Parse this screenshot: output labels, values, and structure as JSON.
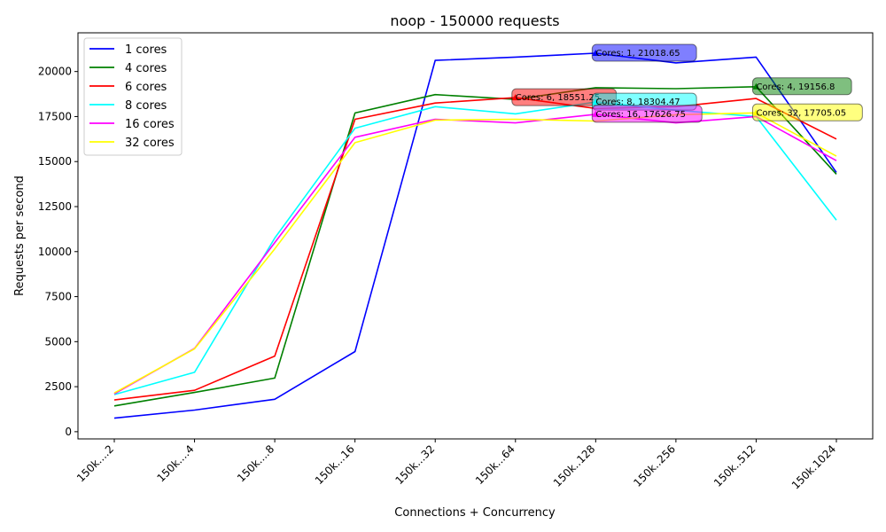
{
  "chart_data": {
    "type": "line",
    "title": "noop - 150000 requests",
    "xlabel": "Connections + Concurrency",
    "ylabel": "Requests per second",
    "categories": [
      "150k....2",
      "150k....4",
      "150k....8",
      "150k...16",
      "150k...32",
      "150k...64",
      "150k..128",
      "150k..256",
      "150k..512",
      "150k.1024"
    ],
    "y_ticks": [
      0,
      2500,
      5000,
      7500,
      10000,
      12500,
      15000,
      17500,
      20000
    ],
    "ylim": [
      -400,
      22150
    ],
    "grid": false,
    "legend_position": "upper-left",
    "series": [
      {
        "name": "1 cores",
        "color": "#0000ff",
        "values": [
          750,
          1200,
          1800,
          4450,
          20620,
          20800,
          21018.65,
          20480,
          20800,
          14400
        ]
      },
      {
        "name": "4 cores",
        "color": "#008000",
        "values": [
          1430,
          2180,
          2980,
          17700,
          18720,
          18450,
          19100,
          19050,
          19156.8,
          14300
        ]
      },
      {
        "name": "6 cores",
        "color": "#ff0000",
        "values": [
          1760,
          2300,
          4200,
          17350,
          18250,
          18551.25,
          17950,
          18050,
          18500,
          16250
        ]
      },
      {
        "name": "8 cores",
        "color": "#00ffff",
        "values": [
          2060,
          3300,
          10750,
          16850,
          18050,
          17650,
          18304.47,
          17850,
          17500,
          11750
        ]
      },
      {
        "name": "16 cores",
        "color": "#ff00ff",
        "values": [
          2100,
          4620,
          10500,
          16350,
          17350,
          17150,
          17626.75,
          17150,
          17500,
          15050
        ]
      },
      {
        "name": "32 cores",
        "color": "#ffff00",
        "values": [
          2150,
          4600,
          10150,
          16050,
          17300,
          17350,
          17250,
          17600,
          17705.05,
          15300
        ]
      }
    ],
    "annotations": [
      {
        "text": "Cores: 1, 21018.65",
        "series": 0,
        "category_index": 6,
        "color": "#0000ff"
      },
      {
        "text": "Cores: 4, 19156.8",
        "series": 1,
        "category_index": 8,
        "color": "#008000"
      },
      {
        "text": "Cores: 6, 18551.25",
        "series": 2,
        "category_index": 5,
        "color": "#ff0000"
      },
      {
        "text": "Cores: 8, 18304.47",
        "series": 3,
        "category_index": 6,
        "color": "#00ffff"
      },
      {
        "text": "Cores: 16, 17626.75",
        "series": 4,
        "category_index": 6,
        "color": "#ff00ff"
      },
      {
        "text": "Cores: 32, 17705.05",
        "series": 5,
        "category_index": 8,
        "color": "#ffff00"
      }
    ]
  }
}
